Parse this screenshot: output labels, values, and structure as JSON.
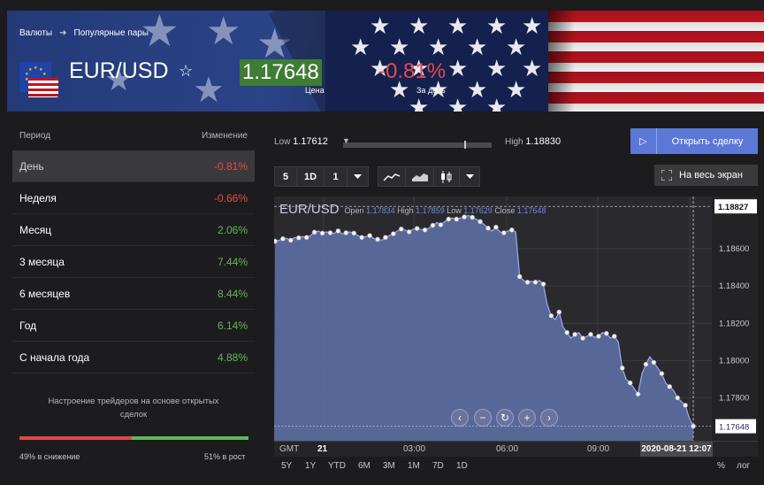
{
  "breadcrumb": {
    "item1": "Валюты",
    "item2": "Популярные пары"
  },
  "instrument": {
    "pair": "EUR/USD",
    "price": "1.17648",
    "price_label": "Цена",
    "day_change": "-0.81%",
    "day_change_label": "За день"
  },
  "performance": {
    "header_period": "Период",
    "header_change": "Изменение",
    "rows": [
      {
        "period": "День",
        "change": "-0.81%",
        "direction": "down"
      },
      {
        "period": "Неделя",
        "change": "-0.66%",
        "direction": "down"
      },
      {
        "period": "Месяц",
        "change": "2.06%",
        "direction": "up"
      },
      {
        "period": "3 месяца",
        "change": "7.44%",
        "direction": "up"
      },
      {
        "period": "6 месяцев",
        "change": "8.44%",
        "direction": "up"
      },
      {
        "period": "Год",
        "change": "6.14%",
        "direction": "up"
      },
      {
        "period": "С начала года",
        "change": "4.88%",
        "direction": "up"
      }
    ]
  },
  "sentiment": {
    "title": "Настроение трейдеров на основе открытых сделок",
    "down_pct": 49,
    "up_pct": 51,
    "down_label": "49% в снижение",
    "up_label": "51% в рост"
  },
  "day_range": {
    "low_label": "Low",
    "low": "1.17612",
    "high_label": "High",
    "high": "1.18830"
  },
  "actions": {
    "trade": "Открыть сделку",
    "fullscreen": "На весь экран"
  },
  "toolbar": {
    "interval_a": "5",
    "interval_b": "1D",
    "interval_c": "1"
  },
  "legend": {
    "symbol": "EUR/USD",
    "open_label": "Open",
    "open": "1.17834",
    "high_label": "High",
    "high": "1.17859",
    "low_label": "Low",
    "low": "1.17629",
    "close_label": "Close",
    "close": "1.17648"
  },
  "chart_data": {
    "type": "area",
    "x_ticks": [
      "21",
      "03:00",
      "06:00",
      "09:00"
    ],
    "y_ticks": [
      "1.18600",
      "1.18400",
      "1.18200",
      "1.18000",
      "1.17800"
    ],
    "ylim": [
      1.1757,
      1.1888
    ],
    "current_value_label": "1.17648",
    "top_value_label": "1.18827",
    "cursor_time_label": "2020-08-21 12:07",
    "timezone_label": "GMT",
    "series": [
      {
        "values": [
          1.1864,
          1.18645,
          1.18653,
          1.18655,
          1.18645,
          1.1866,
          1.18658,
          1.18665,
          1.1866,
          1.1867,
          1.18688,
          1.18695,
          1.18683,
          1.1869,
          1.18685,
          1.18682,
          1.18695,
          1.1868,
          1.18685,
          1.1869,
          1.18683,
          1.1867,
          1.1866,
          1.18665,
          1.1867,
          1.18655,
          1.1865,
          1.18645,
          1.1866,
          1.1867,
          1.1868,
          1.18695,
          1.18705,
          1.187,
          1.1869,
          1.18705,
          1.18708,
          1.18703,
          1.187,
          1.1871,
          1.18725,
          1.1874,
          1.18728,
          1.18745,
          1.18758,
          1.18764,
          1.18758,
          1.18765,
          1.1877,
          1.18778,
          1.18768,
          1.18758,
          1.18745,
          1.1873,
          1.1871,
          1.18695,
          1.18715,
          1.1869,
          1.18685,
          1.18695,
          1.187,
          1.1869,
          1.1845,
          1.1843,
          1.1842,
          1.18425,
          1.1842,
          1.1843,
          1.1841,
          1.183,
          1.1824,
          1.1822,
          1.1826,
          1.1818,
          1.1815,
          1.1812,
          1.1814,
          1.1815,
          1.1812,
          1.1813,
          1.1814,
          1.18125,
          1.1813,
          1.1815,
          1.18145,
          1.1812,
          1.1813,
          1.181,
          1.1796,
          1.179,
          1.1788,
          1.1785,
          1.1782,
          1.1793,
          1.1798,
          1.1802,
          1.1799,
          1.1796,
          1.1793,
          1.1788,
          1.1786,
          1.1784,
          1.178,
          1.1778,
          1.1776,
          1.1769,
          1.17648
        ]
      }
    ],
    "range_buttons": [
      "5Y",
      "1Y",
      "YTD",
      "6M",
      "3M",
      "1M",
      "7D",
      "1D"
    ],
    "scale_options": [
      "%",
      "лог"
    ]
  },
  "colors": {
    "area_fill": "#5a6b9e",
    "area_line": "#9aaef0",
    "positive": "#5db85a",
    "negative": "#e44b4b",
    "accent": "#5b78d6"
  }
}
